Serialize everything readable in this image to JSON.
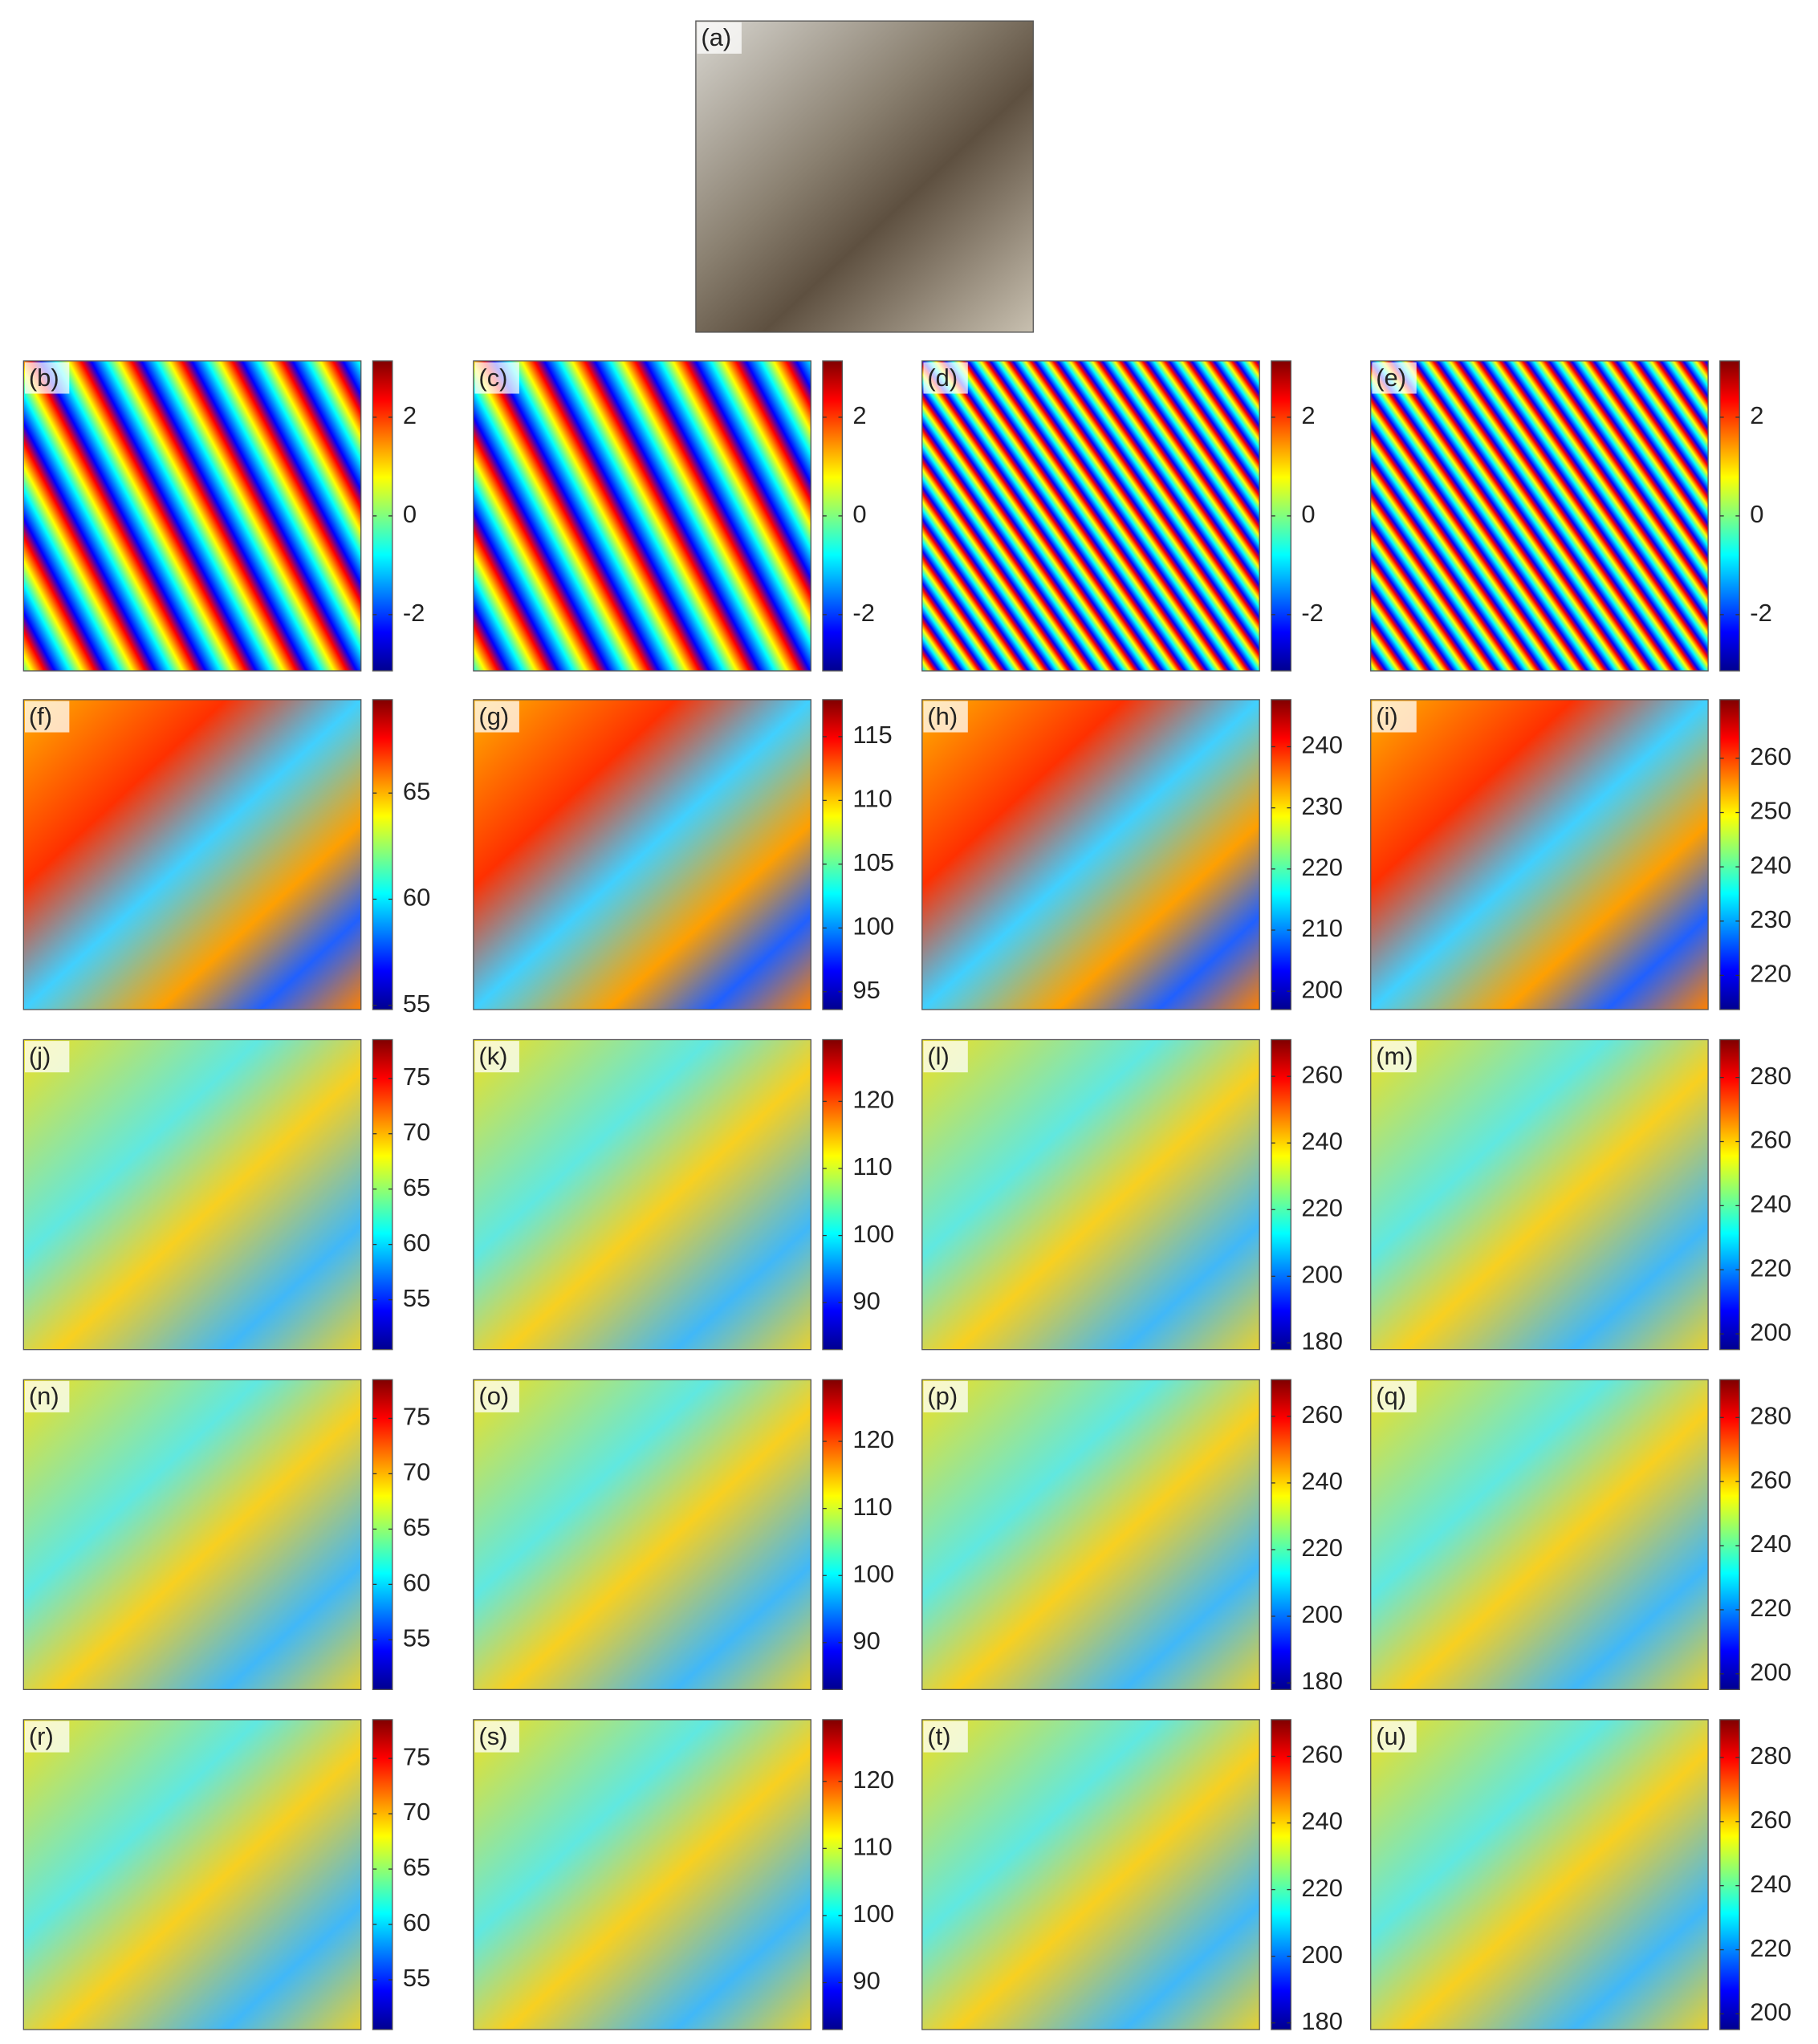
{
  "panels": [
    {
      "label": "(a)"
    },
    {
      "label": "(b)",
      "colorbar": {
        "lim": [
          -3.14,
          3.14
        ],
        "ticks": [
          -2,
          0,
          2
        ]
      }
    },
    {
      "label": "(c)",
      "colorbar": {
        "lim": [
          -3.14,
          3.14
        ],
        "ticks": [
          -2,
          0,
          2
        ]
      }
    },
    {
      "label": "(d)",
      "colorbar": {
        "lim": [
          -3.14,
          3.14
        ],
        "ticks": [
          -2,
          0,
          2
        ]
      }
    },
    {
      "label": "(e)",
      "colorbar": {
        "lim": [
          -3.14,
          3.14
        ],
        "ticks": [
          -2,
          0,
          2
        ]
      }
    },
    {
      "label": "(f)",
      "colorbar": {
        "lim": [
          54.8,
          69.4
        ],
        "ticks": [
          55,
          60,
          65
        ]
      }
    },
    {
      "label": "(g)",
      "colorbar": {
        "lim": [
          93.6,
          117.9
        ],
        "ticks": [
          95,
          100,
          105,
          110,
          115
        ]
      }
    },
    {
      "label": "(h)",
      "colorbar": {
        "lim": [
          197,
          247.7
        ],
        "ticks": [
          200,
          210,
          220,
          230,
          240
        ]
      }
    },
    {
      "label": "(i)",
      "colorbar": {
        "lim": [
          213.7,
          270.8
        ],
        "ticks": [
          220,
          230,
          240,
          250,
          260
        ]
      }
    },
    {
      "label": "(j)",
      "colorbar": {
        "lim": [
          50.5,
          78.5
        ],
        "ticks": [
          55,
          60,
          65,
          70,
          75
        ]
      }
    },
    {
      "label": "(k)",
      "colorbar": {
        "lim": [
          83,
          129.2
        ],
        "ticks": [
          90,
          100,
          110,
          120
        ]
      }
    },
    {
      "label": "(l)",
      "colorbar": {
        "lim": [
          178,
          271
        ],
        "ticks": [
          180,
          200,
          220,
          240,
          260
        ]
      }
    },
    {
      "label": "(m)",
      "colorbar": {
        "lim": [
          195.1,
          291.8
        ],
        "ticks": [
          200,
          220,
          240,
          260,
          280
        ]
      }
    },
    {
      "label": "(n)",
      "colorbar": {
        "lim": [
          50.5,
          78.5
        ],
        "ticks": [
          55,
          60,
          65,
          70,
          75
        ]
      }
    },
    {
      "label": "(o)",
      "colorbar": {
        "lim": [
          83,
          129.2
        ],
        "ticks": [
          90,
          100,
          110,
          120
        ]
      }
    },
    {
      "label": "(p)",
      "colorbar": {
        "lim": [
          178,
          271
        ],
        "ticks": [
          180,
          200,
          220,
          240,
          260
        ]
      }
    },
    {
      "label": "(q)",
      "colorbar": {
        "lim": [
          195.1,
          291.8
        ],
        "ticks": [
          200,
          220,
          240,
          260,
          280
        ]
      }
    },
    {
      "label": "(r)",
      "colorbar": {
        "lim": [
          50.5,
          78.5
        ],
        "ticks": [
          55,
          60,
          65,
          70,
          75
        ]
      }
    },
    {
      "label": "(s)",
      "colorbar": {
        "lim": [
          83,
          129.2
        ],
        "ticks": [
          90,
          100,
          110,
          120
        ]
      }
    },
    {
      "label": "(t)",
      "colorbar": {
        "lim": [
          178,
          271
        ],
        "ticks": [
          180,
          200,
          220,
          240,
          260
        ]
      }
    },
    {
      "label": "(u)",
      "colorbar": {
        "lim": [
          195.1,
          291.8
        ],
        "ticks": [
          200,
          220,
          240,
          260,
          280
        ]
      }
    }
  ]
}
